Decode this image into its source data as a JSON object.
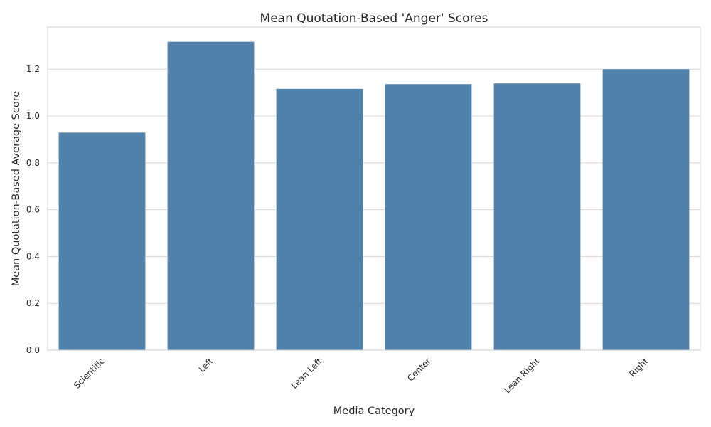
{
  "chart_data": {
    "type": "bar",
    "title": "Mean Quotation-Based 'Anger' Scores",
    "xlabel": "Media Category",
    "ylabel": "Mean Quotation-Based Average Score",
    "categories": [
      "Scientific",
      "Left",
      "Lean Left",
      "Center",
      "Lean Right",
      "Right"
    ],
    "values": [
      0.93,
      1.318,
      1.117,
      1.137,
      1.14,
      1.201
    ],
    "ylim": [
      0,
      1.38
    ],
    "yticks": [
      "0.0",
      "0.2",
      "0.4",
      "0.6",
      "0.8",
      "1.0",
      "1.2"
    ],
    "grid": "horizontal",
    "bar_color": "#4f81aa"
  }
}
